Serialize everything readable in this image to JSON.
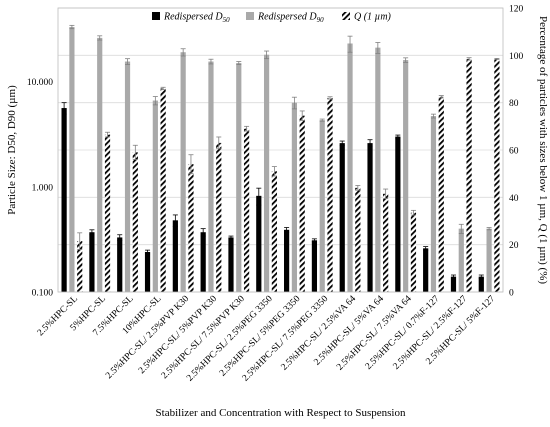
{
  "chart_data": {
    "type": "bar",
    "xlabel": "Stabilizer and Concentration with Respect to Suspension",
    "ylabel_left": "Particle Size: D50, D90 (µm)",
    "ylabel_right": "Percentage of particles with sizes below 1 µm, Q (1 µm) (%)",
    "y_left_scale": "log",
    "y_left_range": [
      0.1,
      50
    ],
    "y_left_ticks": [
      "0.100",
      "1.000",
      "10.000"
    ],
    "y_right_range": [
      0,
      120
    ],
    "y_right_ticks": [
      "0",
      "20",
      "40",
      "60",
      "80",
      "100",
      "120"
    ],
    "legend_position": "top",
    "grid": "horizontal",
    "categories": [
      "2.5%HPC-SL",
      "5%HPC-SL",
      "7.5%HPC-SL",
      "10%HPC-SL",
      "2.5%HPC-SL/ 2.5%PVP K30",
      "2.5%HPC-SL/ 5%PVP K30",
      "2.5%HPC-SL/ 7.5%PVP K30",
      "2.5%HPC-SL/ 2.5%PEG 3350",
      "2.5%HPC-SL/ 5%PEG 3350",
      "2.5%HPC-SL/ 7.5%PEG 3350",
      "2.5%HPC-SL/ 2.5%VA 64",
      "2.5%HPC-SL/ 5%VA 64",
      "2.5%HPC-SL/ 7.5%VA 64",
      "2.5%HPC-SL/ 0.7%F-127",
      "2.5%HPC-SL/ 2.5%F-127",
      "2.5%HPC-SL/ 5%F-127"
    ],
    "series": [
      {
        "name": "Redispersed D50",
        "name_main": "Redispersed D",
        "name_sub": "50",
        "axis": "left",
        "color": "#000000",
        "values": [
          5.6,
          0.37,
          0.33,
          0.24,
          0.48,
          0.37,
          0.33,
          0.82,
          0.39,
          0.31,
          2.6,
          2.6,
          3.0,
          0.26,
          0.14,
          0.14
        ],
        "errors": [
          0.7,
          0.02,
          0.02,
          0.01,
          0.06,
          0.03,
          0.01,
          0.15,
          0.02,
          0.01,
          0.12,
          0.2,
          0.1,
          0.01,
          0.005,
          0.005
        ]
      },
      {
        "name": "Redispersed D90",
        "name_main": "Redispersed D",
        "name_sub": "90",
        "axis": "left",
        "color": "#a9a9a9",
        "values": [
          33,
          26,
          15.5,
          6.6,
          19,
          15.5,
          15,
          18,
          6.3,
          4.3,
          23,
          21,
          16,
          4.7,
          0.4,
          0.4
        ],
        "errors": [
          1.2,
          1.2,
          1.0,
          0.6,
          1.5,
          0.8,
          0.5,
          1.5,
          0.8,
          0.1,
          4.0,
          2.5,
          0.8,
          0.2,
          0.04,
          0.01
        ]
      },
      {
        "name": "Q (1 µm)",
        "axis": "right",
        "pattern": "diagonal-stripes",
        "values": [
          21.5,
          66.5,
          59,
          86,
          54,
          63,
          69,
          51,
          74.5,
          82,
          44,
          41.5,
          33.5,
          82.5,
          98.5,
          98.5
        ],
        "errors": [
          3.5,
          1.0,
          3.0,
          0.5,
          4.0,
          2.5,
          1.0,
          2.0,
          2.0,
          0.5,
          1.0,
          2.0,
          1.0,
          0.5,
          0.5,
          0.2
        ]
      }
    ]
  }
}
